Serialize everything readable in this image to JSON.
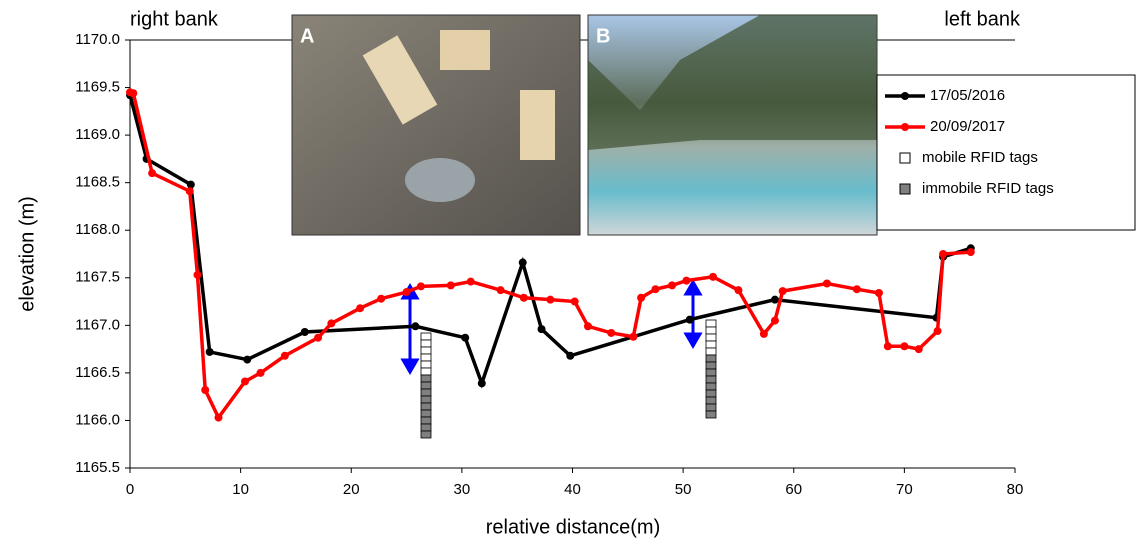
{
  "chart_data": {
    "type": "line",
    "x_label": "relative distance(m)",
    "y_label": "elevation  (m)",
    "annotations": [
      "right bank",
      "left bank",
      "A",
      "B"
    ],
    "xlim": [
      0,
      80
    ],
    "xticks": [
      0,
      10,
      20,
      30,
      40,
      50,
      60,
      70,
      80
    ],
    "ylim": [
      1165.5,
      1170
    ],
    "yticks": [
      1165.5,
      {
        "value": 1166,
        "label": "1166.0"
      },
      1166.5,
      {
        "value": 1167,
        "label": "1167.0"
      },
      1167.5,
      {
        "value": 1168,
        "label": "1168.0"
      },
      1168.5,
      {
        "value": 1169,
        "label": "1169.0"
      },
      1169.5,
      {
        "value": 1170,
        "label": "1170.0"
      }
    ],
    "series": [
      {
        "name": "17/05/2016",
        "color": "#000000",
        "x": [
          0,
          1.5,
          5.5,
          7.2,
          10.6,
          15.8,
          25.8,
          30.3,
          31.8,
          35.5,
          37.2,
          39.8,
          50.6,
          58.3,
          72.9,
          73.5,
          76
        ],
        "values": [
          1169.42,
          1168.75,
          1168.48,
          1166.72,
          1166.64,
          1166.93,
          1166.99,
          1166.87,
          1166.39,
          1167.66,
          1166.96,
          1166.68,
          1167.06,
          1167.27,
          1167.08,
          1167.72,
          1167.81
        ]
      },
      {
        "name": "20/09/2017",
        "color": "#ff0000",
        "x": [
          0,
          0.3,
          2,
          5.4,
          6.1,
          6.8,
          8,
          10.4,
          11.8,
          14,
          17,
          18.2,
          20.8,
          22.7,
          25,
          26.3,
          29,
          30.8,
          33.5,
          35.6,
          38,
          40.2,
          41.4,
          43.5,
          45.5,
          46.2,
          47.5,
          49,
          50.3,
          52.7,
          55,
          57.3,
          58.3,
          59,
          63,
          65.7,
          67.7,
          68.5,
          70,
          71.3,
          73,
          73.5,
          76
        ],
        "values": [
          1169.45,
          1169.44,
          1168.6,
          1168.41,
          1167.53,
          1166.32,
          1166.03,
          1166.41,
          1166.5,
          1166.68,
          1166.87,
          1167.02,
          1167.18,
          1167.28,
          1167.35,
          1167.41,
          1167.42,
          1167.46,
          1167.37,
          1167.29,
          1167.27,
          1167.25,
          1166.99,
          1166.92,
          1166.88,
          1167.29,
          1167.38,
          1167.42,
          1167.47,
          1167.51,
          1167.37,
          1166.91,
          1167.05,
          1167.36,
          1167.44,
          1167.38,
          1167.34,
          1166.78,
          1166.78,
          1166.75,
          1166.94,
          1167.75,
          1167.77
        ]
      }
    ],
    "tag_legend": [
      "mobile RFID tags",
      "immobile RFID tags"
    ]
  }
}
